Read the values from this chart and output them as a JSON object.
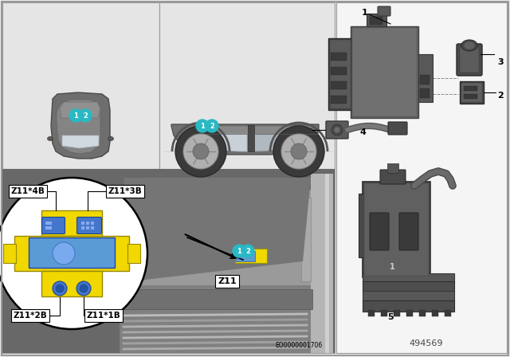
{
  "bg_color": "#f0f0f0",
  "panel_bg_top": "#e8e8e8",
  "panel_bg_bottom": "#888888",
  "panel_right_bg": "#f5f5f5",
  "teal_color": "#2ab8c4",
  "yellow_color": "#f0d800",
  "blue_color": "#5b9bd5",
  "dark_gray": "#555555",
  "mid_gray": "#888888",
  "light_gray": "#c8c8c8",
  "doc_number": "EO0000001706",
  "part_id": "494569",
  "labels": [
    "Z11*4B",
    "Z11*3B",
    "Z11*2B",
    "Z11*1B",
    "Z11"
  ],
  "part_numbers": [
    "1",
    "2",
    "3",
    "4",
    "5"
  ]
}
